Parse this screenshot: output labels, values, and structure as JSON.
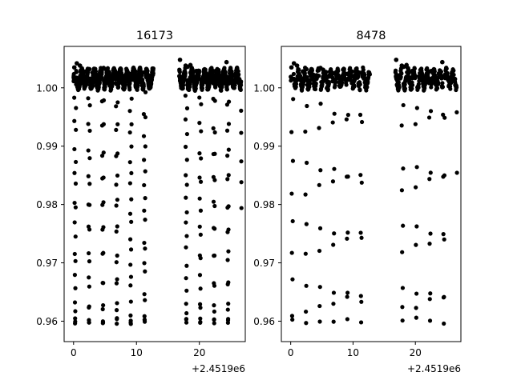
{
  "chart_data": [
    {
      "type": "scatter",
      "title": "16173",
      "marker_color": "#000000",
      "x_offset_label": "+2.4519e6",
      "xlim": [
        -1.5,
        27.3
      ],
      "ylim": [
        0.9565,
        1.0071
      ],
      "x_ticks": [
        {
          "value": 0,
          "label": "0"
        },
        {
          "value": 10,
          "label": "10"
        },
        {
          "value": 20,
          "label": "20"
        }
      ],
      "y_ticks": [
        {
          "value": 0.96,
          "label": "0.96"
        },
        {
          "value": 0.97,
          "label": "0.97"
        },
        {
          "value": 0.98,
          "label": "0.98"
        },
        {
          "value": 0.99,
          "label": "0.99"
        },
        {
          "value": 1.0,
          "label": "1.00"
        }
      ],
      "baseline": 1.0015,
      "period": 2.21,
      "first_transit": 0.25,
      "transit_depth": 0.0415,
      "observed_ranges": [
        [
          0,
          12.7
        ],
        [
          16.8,
          26.7
        ]
      ],
      "x": [
        0.12,
        0.52,
        1.02,
        1.95,
        2.52,
        3.02,
        3.62,
        4.78,
        5.2,
        5.65,
        6.38,
        7.05,
        7.52,
        9.12,
        9.82,
        11.02,
        11.52,
        16.92,
        17.82,
        18.12,
        18.58,
        19.52,
        21.08,
        22.22,
        22.58,
        24.32,
        25.12,
        26.35
      ],
      "y": [
        1.0035,
        1.0042,
        1.0038,
        1.0028,
        1.0032,
        1.0026,
        1.0021,
        1.0034,
        1.0031,
        1.0027,
        1.0025,
        1.0025,
        1.003,
        1.0024,
        1.0028,
        1.0026,
        1.0024,
        1.0048,
        1.0038,
        1.0036,
        1.0039,
        1.0029,
        1.0022,
        1.0028,
        1.0029,
        1.0044,
        1.0025,
        1.0015
      ]
    },
    {
      "type": "scatter",
      "title": "8478",
      "marker_color": "#000000",
      "x_offset_label": "+2.4519e6",
      "xlim": [
        -1.5,
        27.3
      ],
      "ylim": [
        0.9565,
        1.0071
      ],
      "x_ticks": [
        {
          "value": 0,
          "label": "0"
        },
        {
          "value": 10,
          "label": "10"
        },
        {
          "value": 20,
          "label": "20"
        }
      ],
      "y_ticks": [
        {
          "value": 0.96,
          "label": "0.96"
        },
        {
          "value": 0.97,
          "label": "0.97"
        },
        {
          "value": 0.98,
          "label": "0.98"
        },
        {
          "value": 0.99,
          "label": "0.99"
        },
        {
          "value": 1.0,
          "label": "1.00"
        }
      ],
      "baseline": 1.0015,
      "period": 2.21,
      "first_transit": 0.25,
      "transit_depth": 0.0415,
      "observed_ranges": [
        [
          0,
          12.7
        ],
        [
          16.8,
          26.7
        ]
      ],
      "x": [
        0.12,
        0.52,
        1.02,
        1.95,
        2.52,
        3.02,
        3.62,
        4.78,
        5.2,
        5.65,
        6.38,
        7.05,
        7.52,
        9.12,
        9.82,
        11.02,
        11.52,
        16.92,
        17.82,
        18.12,
        18.58,
        19.52,
        21.08,
        22.22,
        22.58,
        24.32,
        25.12,
        26.35
      ],
      "y": [
        1.0035,
        1.0042,
        1.0038,
        1.0028,
        1.0032,
        1.0026,
        1.0021,
        1.0034,
        1.0031,
        1.0027,
        1.0025,
        1.0025,
        1.003,
        1.0024,
        1.0028,
        1.0026,
        1.0024,
        1.0048,
        1.0038,
        1.0036,
        1.0039,
        1.0029,
        1.0022,
        1.0028,
        1.0029,
        1.0044,
        1.0025,
        1.0015
      ]
    }
  ]
}
